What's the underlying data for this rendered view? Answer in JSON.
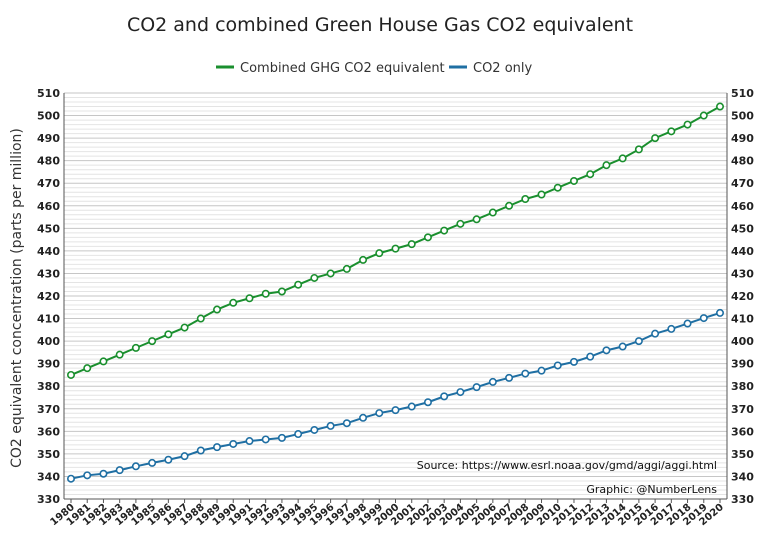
{
  "chart_data": {
    "type": "line",
    "title": "CO2 and combined Green House Gas CO2 equivalent",
    "ylabel": "CO2 equivalent concentration (parts per million)",
    "xlabel": "",
    "ylim": [
      330,
      510
    ],
    "y_ticks": [
      330,
      340,
      350,
      360,
      370,
      380,
      390,
      400,
      410,
      420,
      430,
      440,
      450,
      460,
      470,
      480,
      490,
      500,
      510
    ],
    "x": [
      1980,
      1981,
      1982,
      1983,
      1984,
      1985,
      1986,
      1987,
      1988,
      1989,
      1990,
      1991,
      1992,
      1993,
      1994,
      1995,
      1996,
      1997,
      1998,
      1999,
      2000,
      2001,
      2002,
      2003,
      2004,
      2005,
      2006,
      2007,
      2008,
      2009,
      2010,
      2011,
      2012,
      2013,
      2014,
      2015,
      2016,
      2017,
      2018,
      2019,
      2020
    ],
    "legend_position": "top-center",
    "grid": true,
    "series": [
      {
        "name": "Combined GHG CO2 equivalent",
        "color": "#1a8f2e",
        "values": [
          385,
          388,
          391,
          394,
          397,
          400,
          403,
          406,
          410,
          414,
          417,
          419,
          421,
          422,
          425,
          428,
          430,
          432,
          436,
          439,
          441,
          443,
          446,
          449,
          452,
          454,
          457,
          460,
          463,
          465,
          468,
          471,
          474,
          478,
          481,
          485,
          490,
          493,
          496,
          500,
          504
        ]
      },
      {
        "name": "CO2 only",
        "color": "#1f6fa3",
        "values": [
          339,
          340.5,
          341.2,
          342.8,
          344.5,
          346,
          347.4,
          349,
          351.5,
          353,
          354.4,
          355.7,
          356.4,
          357.1,
          358.8,
          360.6,
          362.4,
          363.6,
          366,
          368.1,
          369.4,
          371,
          372.9,
          375.5,
          377.4,
          379.6,
          381.9,
          383.7,
          385.6,
          386.9,
          389.2,
          390.8,
          393.1,
          395.9,
          397.6,
          400,
          403.3,
          405.4,
          407.8,
          410.2,
          412.5
        ]
      }
    ],
    "annotations": [
      "Source: https://www.esrl.noaa.gov/gmd/aggi/aggi.html",
      "Graphic: @NumberLens"
    ]
  }
}
